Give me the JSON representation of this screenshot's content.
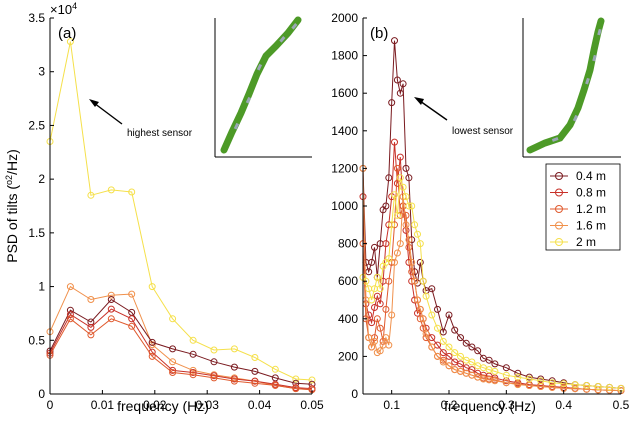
{
  "chart_data": [
    {
      "type": "line",
      "panel_label": "(a)",
      "xlabel": "frequency (Hz)",
      "ylabel": "PSD of tilts (°²/Hz)",
      "ylabel_parts": {
        "before": "PSD of tilts (",
        "sup_deg": "o",
        "sup_two": "2",
        "after": "/Hz)"
      },
      "exponent_label": {
        "base": "×10",
        "exp": "4"
      },
      "xlim": [
        0,
        0.05
      ],
      "ylim": [
        0,
        35000
      ],
      "x_ticks": [
        "0",
        "0.01",
        "0.02",
        "0.03",
        "0.04",
        "0.05"
      ],
      "y_ticks": [
        "0",
        "0.5",
        "1",
        "1.5",
        "2",
        "2.5",
        "3",
        "3.5"
      ],
      "annotation": "highest sensor",
      "x": [
        0,
        0.0039,
        0.0078,
        0.0117,
        0.0156,
        0.0195,
        0.0234,
        0.0273,
        0.0313,
        0.0352,
        0.0391,
        0.043,
        0.0469,
        0.05
      ],
      "series": [
        {
          "values": [
            23500,
            32800,
            18500,
            19000,
            18800,
            10000,
            7000,
            5000,
            4100,
            4200,
            3400,
            2300,
            1400,
            1300
          ],
          "color": "#f5e04a"
        },
        {
          "values": [
            5800,
            10000,
            8800,
            9200,
            9300,
            4600,
            3000,
            2200,
            1800,
            1500,
            1200,
            800,
            500,
            400
          ],
          "color": "#f0904b"
        },
        {
          "values": [
            4000,
            7800,
            6700,
            8800,
            7600,
            4800,
            4200,
            3700,
            3000,
            2500,
            2100,
            1500,
            1000,
            900
          ],
          "color": "#7a1a1f"
        },
        {
          "values": [
            3800,
            7400,
            6200,
            7900,
            7000,
            3900,
            2200,
            2000,
            1700,
            1400,
            1200,
            900,
            600,
            500
          ],
          "color": "#c83028"
        },
        {
          "values": [
            3600,
            7000,
            5500,
            7000,
            6300,
            3500,
            2000,
            1800,
            1500,
            1200,
            1000,
            800,
            500,
            400
          ],
          "color": "#e05a2e"
        }
      ]
    },
    {
      "type": "line",
      "panel_label": "(b)",
      "xlabel": "frequency (Hz)",
      "xlim": [
        0.05,
        0.5
      ],
      "ylim": [
        0,
        2000
      ],
      "x_ticks": [
        "0.1",
        "0.2",
        "0.3",
        "0.4",
        "0.5"
      ],
      "y_ticks": [
        "0",
        "200",
        "400",
        "600",
        "800",
        "1000",
        "1200",
        "1400",
        "1600",
        "1800",
        "2000"
      ],
      "annotation": "lowest sensor",
      "legend_position": "right, middle",
      "series": [
        {
          "name": "0.4 m",
          "color": "#7a1a1f",
          "points": [
            [
              0.05,
              1200
            ],
            [
              0.055,
              700
            ],
            [
              0.06,
              650
            ],
            [
              0.065,
              700
            ],
            [
              0.07,
              780
            ],
            [
              0.075,
              620
            ],
            [
              0.08,
              800
            ],
            [
              0.085,
              980
            ],
            [
              0.09,
              1000
            ],
            [
              0.095,
              1150
            ],
            [
              0.1,
              1550
            ],
            [
              0.105,
              1880
            ],
            [
              0.11,
              1670
            ],
            [
              0.115,
              1600
            ],
            [
              0.12,
              1650
            ],
            [
              0.125,
              1200
            ],
            [
              0.13,
              1150
            ],
            [
              0.135,
              820
            ],
            [
              0.14,
              650
            ],
            [
              0.145,
              590
            ],
            [
              0.15,
              700
            ],
            [
              0.155,
              600
            ],
            [
              0.16,
              550
            ],
            [
              0.17,
              560
            ],
            [
              0.18,
              450
            ],
            [
              0.19,
              330
            ],
            [
              0.2,
              420
            ],
            [
              0.21,
              340
            ],
            [
              0.22,
              300
            ],
            [
              0.23,
              270
            ],
            [
              0.24,
              250
            ],
            [
              0.25,
              230
            ],
            [
              0.26,
              190
            ],
            [
              0.27,
              180
            ],
            [
              0.28,
              160
            ],
            [
              0.3,
              140
            ],
            [
              0.32,
              110
            ],
            [
              0.34,
              90
            ],
            [
              0.36,
              80
            ],
            [
              0.38,
              70
            ],
            [
              0.4,
              60
            ],
            [
              0.42,
              50
            ],
            [
              0.44,
              45
            ],
            [
              0.46,
              40
            ],
            [
              0.48,
              35
            ],
            [
              0.5,
              30
            ]
          ]
        },
        {
          "name": "0.8 m",
          "color": "#c83028",
          "points": [
            [
              0.05,
              1050
            ],
            [
              0.055,
              480
            ],
            [
              0.06,
              420
            ],
            [
              0.065,
              380
            ],
            [
              0.07,
              460
            ],
            [
              0.075,
              520
            ],
            [
              0.08,
              480
            ],
            [
              0.085,
              600
            ],
            [
              0.09,
              800
            ],
            [
              0.095,
              900
            ],
            [
              0.1,
              1050
            ],
            [
              0.105,
              1340
            ],
            [
              0.11,
              1120
            ],
            [
              0.115,
              1260
            ],
            [
              0.12,
              1000
            ],
            [
              0.125,
              870
            ],
            [
              0.13,
              700
            ],
            [
              0.135,
              600
            ],
            [
              0.14,
              500
            ],
            [
              0.145,
              430
            ],
            [
              0.15,
              450
            ],
            [
              0.155,
              400
            ],
            [
              0.16,
              350
            ],
            [
              0.17,
              300
            ],
            [
              0.18,
              260
            ],
            [
              0.19,
              220
            ],
            [
              0.2,
              200
            ],
            [
              0.21,
              170
            ],
            [
              0.22,
              160
            ],
            [
              0.23,
              140
            ],
            [
              0.24,
              130
            ],
            [
              0.25,
              110
            ],
            [
              0.26,
              100
            ],
            [
              0.27,
              95
            ],
            [
              0.28,
              85
            ],
            [
              0.3,
              70
            ],
            [
              0.32,
              60
            ],
            [
              0.34,
              50
            ],
            [
              0.36,
              45
            ],
            [
              0.38,
              40
            ],
            [
              0.4,
              35
            ],
            [
              0.42,
              30
            ],
            [
              0.44,
              25
            ],
            [
              0.46,
              22
            ],
            [
              0.48,
              20
            ],
            [
              0.5,
              18
            ]
          ]
        },
        {
          "name": "1.2 m",
          "color": "#e05a2e",
          "points": [
            [
              0.05,
              800
            ],
            [
              0.055,
              400
            ],
            [
              0.06,
              300
            ],
            [
              0.065,
              250
            ],
            [
              0.07,
              300
            ],
            [
              0.075,
              400
            ],
            [
              0.08,
              350
            ],
            [
              0.085,
              280
            ],
            [
              0.09,
              450
            ],
            [
              0.095,
              600
            ],
            [
              0.1,
              700
            ],
            [
              0.105,
              900
            ],
            [
              0.11,
              1200
            ],
            [
              0.115,
              950
            ],
            [
              0.12,
              1000
            ],
            [
              0.125,
              950
            ],
            [
              0.13,
              780
            ],
            [
              0.135,
              650
            ],
            [
              0.14,
              600
            ],
            [
              0.145,
              500
            ],
            [
              0.15,
              400
            ],
            [
              0.155,
              350
            ],
            [
              0.16,
              300
            ],
            [
              0.17,
              250
            ],
            [
              0.18,
              200
            ],
            [
              0.19,
              180
            ],
            [
              0.2,
              150
            ],
            [
              0.21,
              130
            ],
            [
              0.22,
              120
            ],
            [
              0.23,
              110
            ],
            [
              0.24,
              100
            ],
            [
              0.25,
              90
            ],
            [
              0.26,
              85
            ],
            [
              0.27,
              80
            ],
            [
              0.28,
              75
            ],
            [
              0.3,
              60
            ],
            [
              0.32,
              55
            ],
            [
              0.34,
              45
            ],
            [
              0.36,
              40
            ],
            [
              0.38,
              35
            ],
            [
              0.4,
              30
            ],
            [
              0.42,
              28
            ],
            [
              0.44,
              25
            ],
            [
              0.46,
              22
            ],
            [
              0.48,
              20
            ],
            [
              0.5,
              18
            ]
          ]
        },
        {
          "name": "1.6 m",
          "color": "#f0904b",
          "points": [
            [
              0.05,
              1200
            ],
            [
              0.055,
              500
            ],
            [
              0.06,
              300
            ],
            [
              0.065,
              250
            ],
            [
              0.07,
              280
            ],
            [
              0.075,
              220
            ],
            [
              0.08,
              230
            ],
            [
              0.085,
              260
            ],
            [
              0.09,
              300
            ],
            [
              0.095,
              260
            ],
            [
              0.1,
              420
            ],
            [
              0.105,
              700
            ],
            [
              0.11,
              750
            ],
            [
              0.115,
              800
            ],
            [
              0.12,
              1050
            ],
            [
              0.125,
              900
            ],
            [
              0.13,
              820
            ],
            [
              0.135,
              700
            ],
            [
              0.14,
              600
            ],
            [
              0.145,
              500
            ],
            [
              0.15,
              450
            ],
            [
              0.155,
              400
            ],
            [
              0.16,
              320
            ],
            [
              0.17,
              250
            ],
            [
              0.18,
              200
            ],
            [
              0.19,
              170
            ],
            [
              0.2,
              150
            ],
            [
              0.21,
              130
            ],
            [
              0.22,
              120
            ],
            [
              0.23,
              110
            ],
            [
              0.24,
              100
            ],
            [
              0.25,
              90
            ],
            [
              0.26,
              80
            ],
            [
              0.27,
              75
            ],
            [
              0.28,
              70
            ],
            [
              0.3,
              60
            ],
            [
              0.32,
              50
            ],
            [
              0.34,
              45
            ],
            [
              0.36,
              40
            ],
            [
              0.38,
              35
            ],
            [
              0.4,
              30
            ],
            [
              0.42,
              28
            ],
            [
              0.44,
              25
            ],
            [
              0.46,
              22
            ],
            [
              0.48,
              20
            ],
            [
              0.5,
              18
            ]
          ]
        },
        {
          "name": "2 m",
          "color": "#f5e04a",
          "points": [
            [
              0.05,
              620
            ],
            [
              0.055,
              600
            ],
            [
              0.06,
              560
            ],
            [
              0.065,
              500
            ],
            [
              0.07,
              560
            ],
            [
              0.075,
              620
            ],
            [
              0.08,
              560
            ],
            [
              0.085,
              680
            ],
            [
              0.09,
              700
            ],
            [
              0.095,
              720
            ],
            [
              0.1,
              900
            ],
            [
              0.105,
              1060
            ],
            [
              0.11,
              950
            ],
            [
              0.115,
              1150
            ],
            [
              0.12,
              1100
            ],
            [
              0.125,
              1050
            ],
            [
              0.13,
              1000
            ],
            [
              0.135,
              1000
            ],
            [
              0.14,
              900
            ],
            [
              0.145,
              850
            ],
            [
              0.15,
              800
            ],
            [
              0.155,
              600
            ],
            [
              0.16,
              520
            ],
            [
              0.17,
              420
            ],
            [
              0.18,
              350
            ],
            [
              0.19,
              280
            ],
            [
              0.2,
              250
            ],
            [
              0.21,
              220
            ],
            [
              0.22,
              200
            ],
            [
              0.23,
              180
            ],
            [
              0.24,
              170
            ],
            [
              0.25,
              150
            ],
            [
              0.26,
              140
            ],
            [
              0.27,
              130
            ],
            [
              0.28,
              120
            ],
            [
              0.3,
              100
            ],
            [
              0.32,
              90
            ],
            [
              0.34,
              80
            ],
            [
              0.36,
              70
            ],
            [
              0.38,
              60
            ],
            [
              0.4,
              55
            ],
            [
              0.42,
              50
            ],
            [
              0.44,
              45
            ],
            [
              0.46,
              40
            ],
            [
              0.48,
              35
            ],
            [
              0.5,
              30
            ]
          ]
        }
      ]
    }
  ]
}
